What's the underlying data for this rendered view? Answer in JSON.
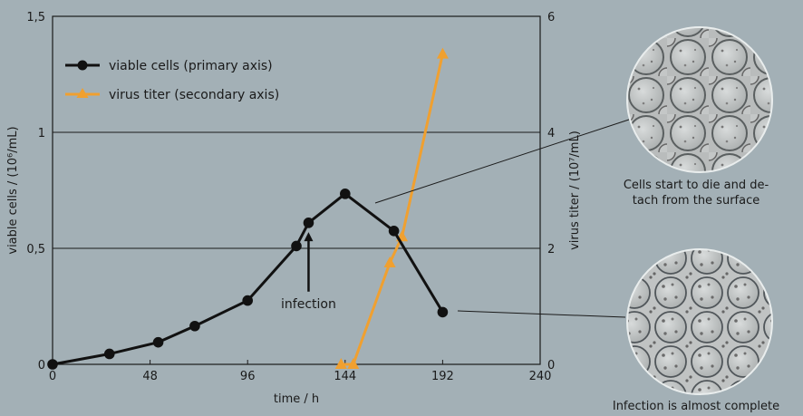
{
  "chart_data": {
    "type": "line",
    "xlabel": "time / h",
    "ylabel": "viable cells / (10⁶/mL)",
    "y2label": "virus titer / (10⁷/mL)",
    "xlim": [
      0,
      240
    ],
    "ylim": [
      0,
      1.5
    ],
    "y2lim": [
      0,
      6
    ],
    "x_ticks": [
      0,
      48,
      96,
      144,
      192,
      240
    ],
    "x_tick_labels": [
      "0",
      "48",
      "96",
      "144",
      "192",
      "240"
    ],
    "y_ticks": [
      0,
      0.5,
      1,
      1.5
    ],
    "y_tick_labels": [
      "0",
      "0,5",
      "1",
      "1,5"
    ],
    "y2_ticks": [
      0,
      2,
      4,
      6
    ],
    "y2_tick_labels": [
      "0",
      "2",
      "4",
      "6"
    ],
    "gridlines_y": [
      0.5,
      1
    ],
    "legend_position": "top-left",
    "series": [
      {
        "name": "viable cells (primary axis)",
        "axis": "primary",
        "marker": "circle",
        "color": "#111111",
        "x": [
          0,
          28,
          52,
          70,
          96,
          120,
          126,
          144,
          168,
          192
        ],
        "y": [
          0,
          0.045,
          0.095,
          0.165,
          0.275,
          0.51,
          0.61,
          0.735,
          0.575,
          0.225
        ]
      },
      {
        "name": "virus titer (secondary axis)",
        "axis": "secondary",
        "marker": "triangle",
        "color": "#f0a030",
        "x": [
          142,
          148,
          166,
          172,
          192
        ],
        "y": [
          0,
          0,
          1.75,
          2.2,
          5.35
        ]
      }
    ],
    "annotations": [
      {
        "text": "infection",
        "x": 126,
        "y": 0.29,
        "arrow_to_y": 0.57
      }
    ]
  },
  "images": {
    "cells_dying": {
      "caption_line1": "Cells start to die and de-",
      "caption_line2": "tach from the surface"
    },
    "infection_complete": {
      "caption": "Infection is almost complete"
    }
  },
  "colors": {
    "background": "#a3b0b6",
    "plot_bg": "#a3b0b6",
    "cells_line": "#111111",
    "virus_line": "#f0a030"
  }
}
